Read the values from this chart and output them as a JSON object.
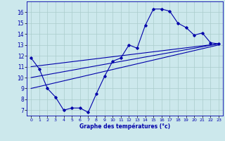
{
  "xlabel": "Graphe des températures (°c)",
  "bg_color": "#cce8ec",
  "grid_color": "#aacccc",
  "line_color": "#0000aa",
  "xlim": [
    -0.5,
    23.5
  ],
  "ylim": [
    6.5,
    17.0
  ],
  "yticks": [
    7,
    8,
    9,
    10,
    11,
    12,
    13,
    14,
    15,
    16
  ],
  "xticks": [
    0,
    1,
    2,
    3,
    4,
    5,
    6,
    7,
    8,
    9,
    10,
    11,
    12,
    13,
    14,
    15,
    16,
    17,
    18,
    19,
    20,
    21,
    22,
    23
  ],
  "line1_x": [
    0,
    1,
    2,
    3,
    4,
    5,
    6,
    7,
    8,
    9,
    10,
    11,
    12,
    13,
    14,
    15,
    16,
    17,
    18,
    19,
    20,
    21,
    22,
    23
  ],
  "line1_y": [
    11.8,
    10.8,
    9.0,
    8.2,
    7.0,
    7.2,
    7.2,
    6.8,
    8.5,
    10.1,
    11.5,
    11.8,
    13.0,
    12.7,
    14.8,
    16.3,
    16.3,
    16.1,
    15.0,
    14.6,
    13.9,
    14.1,
    13.2,
    13.1
  ],
  "line2_x": [
    0,
    23
  ],
  "line2_y": [
    11.0,
    13.1
  ],
  "line3_x": [
    0,
    23
  ],
  "line3_y": [
    10.0,
    13.1
  ],
  "line4_x": [
    0,
    23
  ],
  "line4_y": [
    9.0,
    13.0
  ]
}
